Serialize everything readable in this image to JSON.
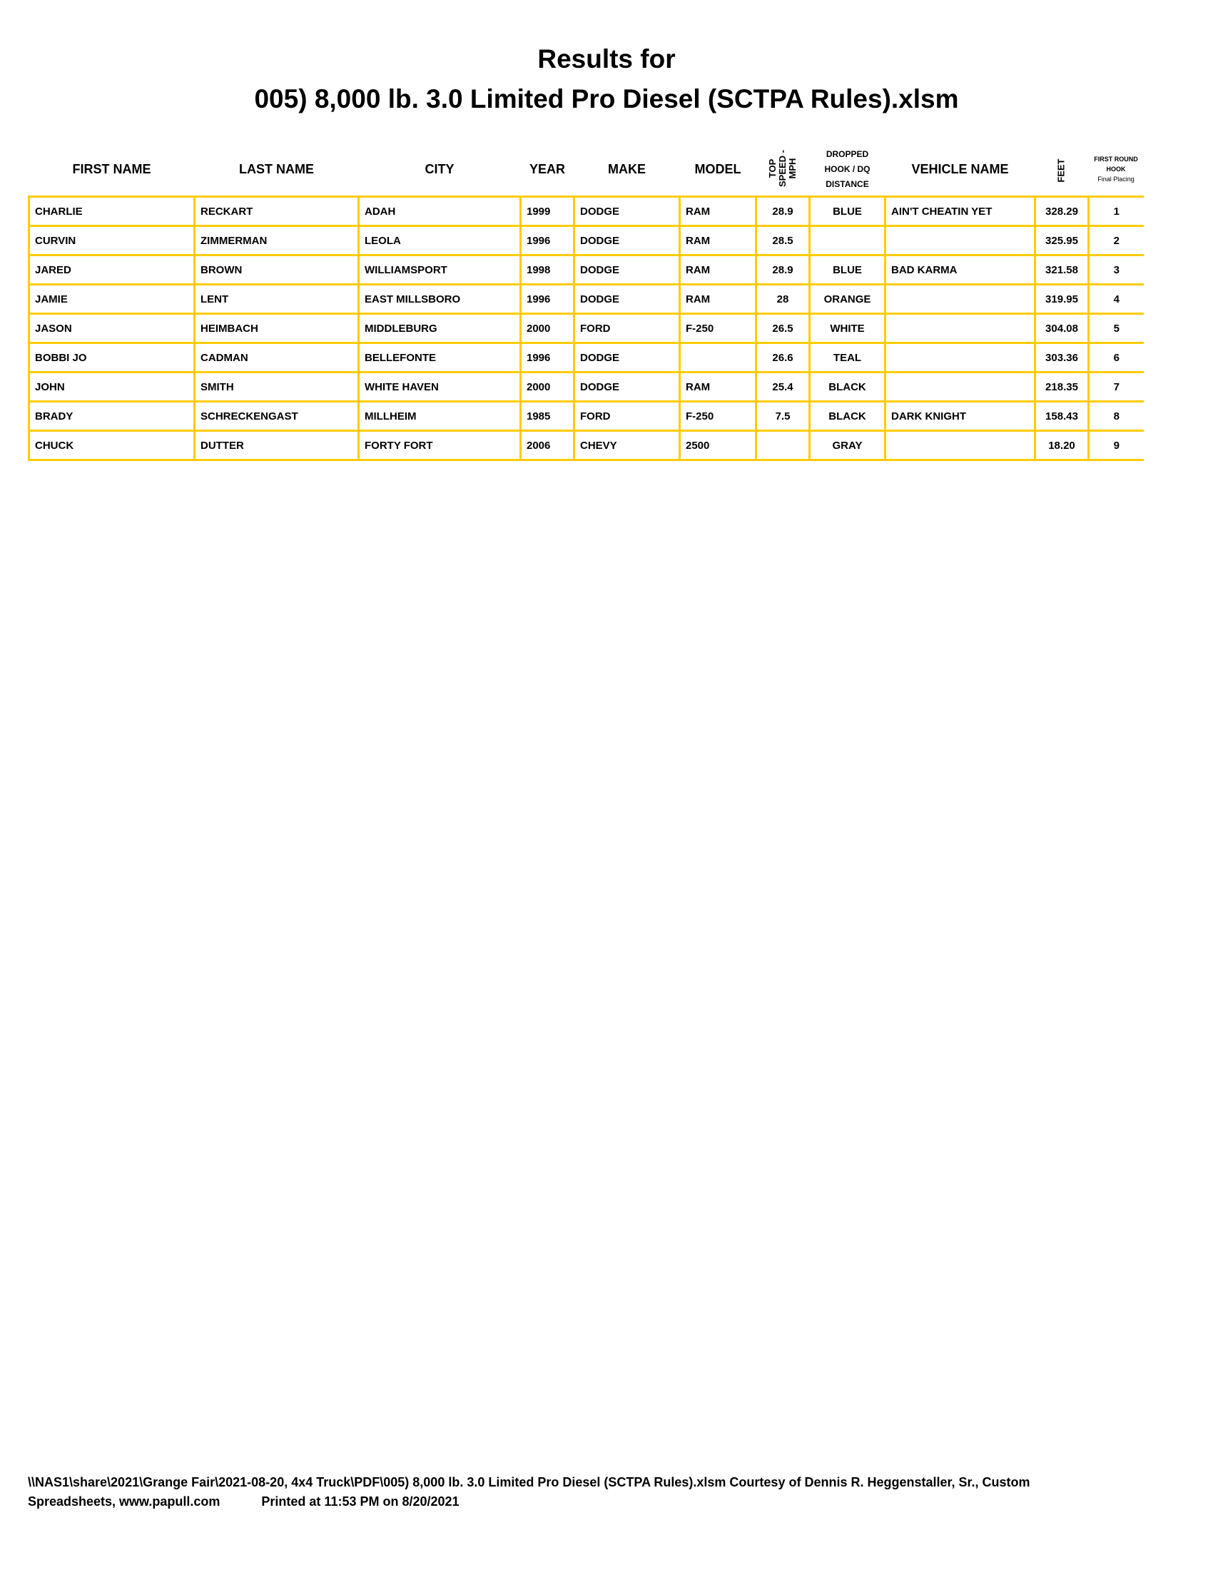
{
  "title": {
    "line1": "Results for",
    "line2": "005) 8,000 lb. 3.0 Limited Pro Diesel (SCTPA Rules).xlsm"
  },
  "columns": {
    "first": "FIRST NAME",
    "last": "LAST NAME",
    "city": "CITY",
    "year": "YEAR",
    "make": "MAKE",
    "model": "MODEL",
    "speed": "TOP SPEED - MPH",
    "dropped": [
      "DROPPED",
      "HOOK / DQ",
      "DISTANCE"
    ],
    "vehicle": "VEHICLE NAME",
    "feet": "FEET",
    "placing": [
      "FIRST ROUND",
      "HOOK",
      "Final Placing"
    ]
  },
  "rows": [
    [
      "CHARLIE",
      "RECKART",
      "ADAH",
      "1999",
      "DODGE",
      "RAM",
      "28.9",
      "BLUE",
      "AIN'T CHEATIN YET",
      "328.29",
      "1"
    ],
    [
      "CURVIN",
      "ZIMMERMAN",
      "LEOLA",
      "1996",
      "DODGE",
      "RAM",
      "28.5",
      "",
      "",
      "325.95",
      "2"
    ],
    [
      "JARED",
      "BROWN",
      "WILLIAMSPORT",
      "1998",
      "DODGE",
      "RAM",
      "28.9",
      "BLUE",
      "BAD KARMA",
      "321.58",
      "3"
    ],
    [
      "JAMIE",
      "LENT",
      "EAST MILLSBORO",
      "1996",
      "DODGE",
      "RAM",
      "28",
      "ORANGE",
      "",
      "319.95",
      "4"
    ],
    [
      "JASON",
      "HEIMBACH",
      "MIDDLEBURG",
      "2000",
      "FORD",
      "F-250",
      "26.5",
      "WHITE",
      "",
      "304.08",
      "5"
    ],
    [
      "BOBBI JO",
      "CADMAN",
      "BELLEFONTE",
      "1996",
      "DODGE",
      "",
      "26.6",
      "TEAL",
      "",
      "303.36",
      "6"
    ],
    [
      "JOHN",
      "SMITH",
      "WHITE HAVEN",
      "2000",
      "DODGE",
      "RAM",
      "25.4",
      "BLACK",
      "",
      "218.35",
      "7"
    ],
    [
      "BRADY",
      "SCHRECKENGAST",
      "MILLHEIM",
      "1985",
      "FORD",
      "F-250",
      "7.5",
      "BLACK",
      "DARK KNIGHT",
      "158.43",
      "8"
    ],
    [
      "CHUCK",
      "DUTTER",
      "FORTY FORT",
      "2006",
      "CHEVY",
      "2500",
      "",
      "GRAY",
      "",
      "18.20",
      "9"
    ]
  ],
  "footer": {
    "line1": "\\\\NAS1\\share\\2021\\Grange Fair\\2021-08-20, 4x4 Truck\\PDF\\005) 8,000 lb. 3.0 Limited Pro Diesel (SCTPA Rules).xlsm  Courtesy of Dennis R. Heggenstaller, Sr., Custom",
    "line2": "Spreadsheets, www.papull.com",
    "printed": "Printed at 11:53 PM on 8/20/2021"
  },
  "colors": {
    "grid": "#ffcc00",
    "text": "#000000"
  }
}
